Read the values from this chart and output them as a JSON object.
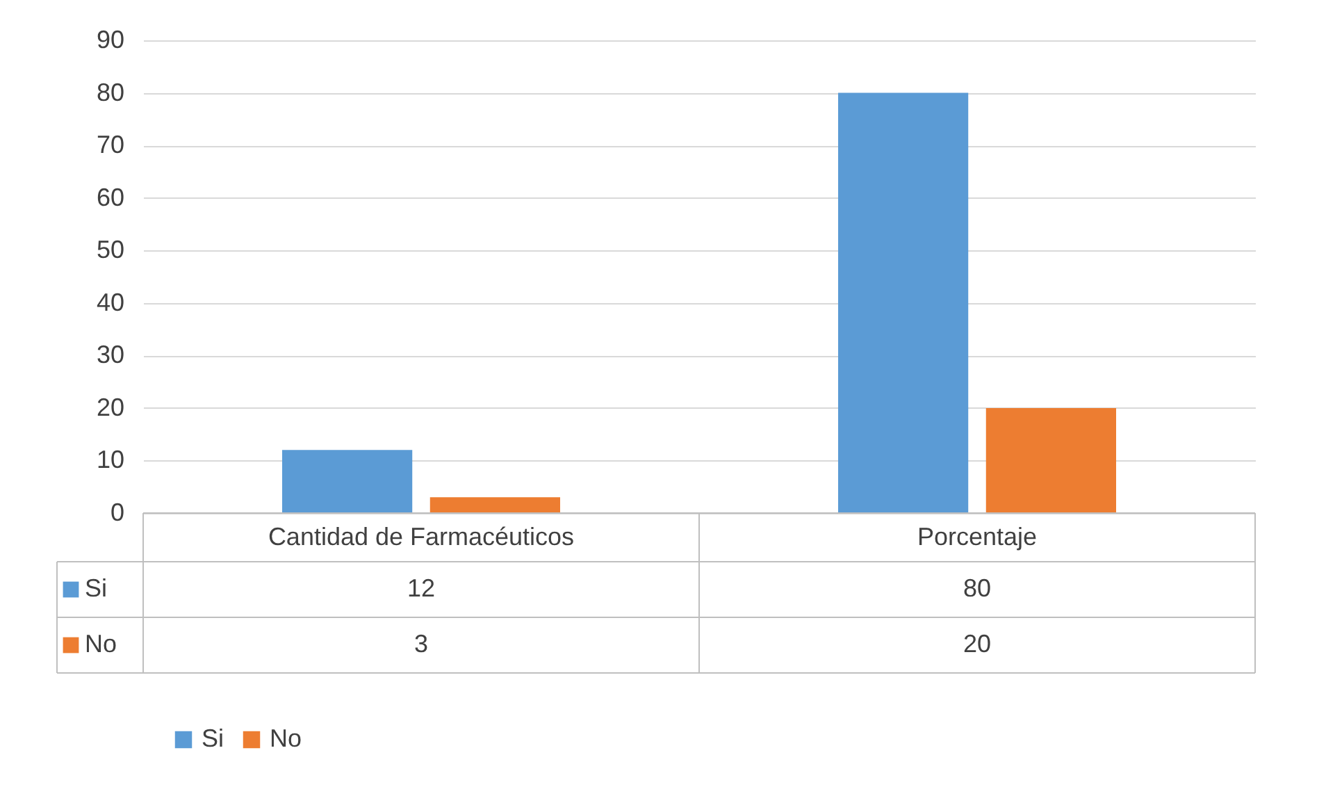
{
  "chart_data": {
    "type": "bar",
    "categories": [
      "Cantidad de Farmacéuticos",
      "Porcentaje"
    ],
    "series": [
      {
        "name": "Si",
        "color": "#5b9bd5",
        "values": [
          12,
          80
        ]
      },
      {
        "name": "No",
        "color": "#ed7d31",
        "values": [
          3,
          20
        ]
      }
    ],
    "ylim": [
      0,
      90
    ],
    "yticks": [
      0,
      10,
      20,
      30,
      40,
      50,
      60,
      70,
      80,
      90
    ],
    "grid": "y",
    "legend": "bottom",
    "data_labels": true
  }
}
